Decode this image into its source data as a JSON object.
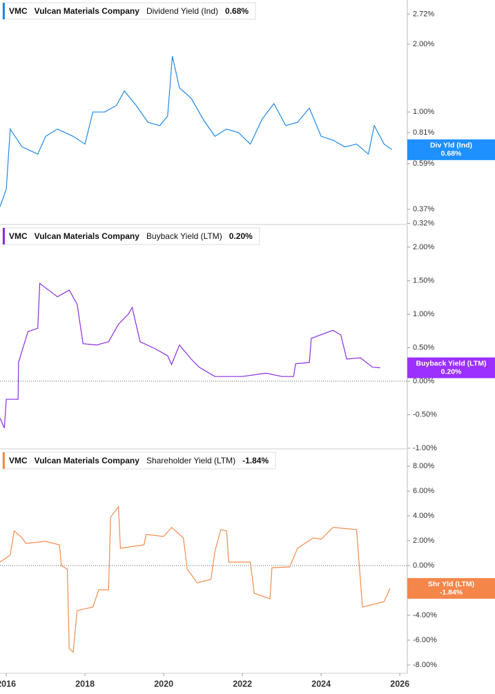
{
  "chart_data": [
    {
      "type": "line",
      "ticker": "VMC",
      "company": "Vulcan Materials Company",
      "latest_label": "0.68%",
      "tag_label": "Div Yld (Ind)",
      "log_scale": true,
      "zero_line": false,
      "tag_color": "#1e90ff",
      "x": [
        2015.84,
        2016.0,
        2016.1,
        2016.4,
        2016.8,
        2017.0,
        2017.3,
        2017.7,
        2018.0,
        2018.2,
        2018.5,
        2018.8,
        2019.0,
        2019.3,
        2019.6,
        2019.9,
        2020.1,
        2020.22,
        2020.4,
        2020.7,
        2021.0,
        2021.3,
        2021.6,
        2021.9,
        2022.2,
        2022.5,
        2022.8,
        2023.1,
        2023.4,
        2023.7,
        2024.0,
        2024.3,
        2024.6,
        2024.9,
        2025.2,
        2025.35,
        2025.6,
        2025.8
      ],
      "series": [
        {
          "name": "Dividend Yield (Ind)",
          "color": "#1e88e5",
          "values": [
            0.38,
            0.455,
            0.84,
            0.7,
            0.65,
            0.78,
            0.84,
            0.78,
            0.72,
            1.0,
            1.0,
            1.07,
            1.24,
            1.07,
            0.9,
            0.87,
            0.96,
            1.77,
            1.28,
            1.15,
            0.93,
            0.78,
            0.84,
            0.81,
            0.72,
            0.93,
            1.09,
            0.87,
            0.9,
            1.04,
            0.78,
            0.75,
            0.7,
            0.72,
            0.65,
            0.87,
            0.72,
            0.68
          ]
        }
      ],
      "xlim": [
        2015.84,
        2026.19
      ],
      "ylim": [
        0.317,
        3.14
      ],
      "yticks": [
        {
          "value": 0.32,
          "label": "0.32%"
        },
        {
          "value": 0.37,
          "label": "0.37%"
        },
        {
          "value": 0.59,
          "label": "0.59%"
        },
        {
          "value": 0.81,
          "label": "0.81%"
        },
        {
          "value": 1.0,
          "label": "1.00%"
        },
        {
          "value": 2.0,
          "label": "2.00%"
        },
        {
          "value": 2.72,
          "label": "2.72%"
        }
      ]
    },
    {
      "type": "line",
      "ticker": "VMC",
      "company": "Vulcan Materials Company",
      "latest_label": "0.20%",
      "tag_label": "Buyback Yield (LTM)",
      "log_scale": false,
      "zero_line": true,
      "tag_color": "#9b30ff",
      "x": [
        2015.84,
        2015.95,
        2016.0,
        2016.3,
        2016.31,
        2016.55,
        2016.8,
        2016.85,
        2017.3,
        2017.6,
        2017.8,
        2017.95,
        2018.3,
        2018.6,
        2018.85,
        2019.1,
        2019.2,
        2019.4,
        2019.8,
        2020.1,
        2020.2,
        2020.4,
        2020.7,
        2020.9,
        2021.3,
        2022.0,
        2022.6,
        2023.0,
        2023.3,
        2023.35,
        2023.7,
        2023.75,
        2024.3,
        2024.5,
        2024.65,
        2025.0,
        2025.3,
        2025.5
      ],
      "series": [
        {
          "name": "Buyback Yield (LTM)",
          "color": "#8a2be2",
          "values": [
            -0.55,
            -0.7,
            -0.27,
            -0.27,
            0.28,
            0.74,
            0.79,
            1.46,
            1.26,
            1.36,
            1.15,
            0.56,
            0.54,
            0.59,
            0.85,
            1.0,
            1.1,
            0.59,
            0.48,
            0.38,
            0.25,
            0.54,
            0.33,
            0.21,
            0.07,
            0.07,
            0.12,
            0.07,
            0.07,
            0.26,
            0.28,
            0.64,
            0.76,
            0.69,
            0.33,
            0.35,
            0.21,
            0.2
          ]
        }
      ],
      "xlim": [
        2015.84,
        2026.19
      ],
      "ylim": [
        -1.01,
        2.33
      ],
      "yticks": [
        {
          "value": -1.0,
          "label": "-1.00%"
        },
        {
          "value": -0.5,
          "label": "-0.50%"
        },
        {
          "value": 0.0,
          "label": "0.00%"
        },
        {
          "value": 0.5,
          "label": "0.50%"
        },
        {
          "value": 1.0,
          "label": "1.00%"
        },
        {
          "value": 1.5,
          "label": "1.50%"
        },
        {
          "value": 2.0,
          "label": "2.00%"
        }
      ]
    },
    {
      "type": "line",
      "ticker": "VMC",
      "company": "Vulcan Materials Company",
      "latest_label": "-1.84%",
      "tag_label": "Shr Yld (LTM)",
      "log_scale": false,
      "zero_line": true,
      "tag_color": "#f5864a",
      "x": [
        2015.84,
        2016.1,
        2016.2,
        2016.4,
        2016.5,
        2017.0,
        2017.35,
        2017.4,
        2017.55,
        2017.6,
        2017.7,
        2017.8,
        2018.2,
        2018.35,
        2018.6,
        2018.65,
        2018.85,
        2018.9,
        2019.5,
        2019.55,
        2020.0,
        2020.2,
        2020.5,
        2020.6,
        2020.85,
        2021.2,
        2021.3,
        2021.45,
        2021.6,
        2021.65,
        2022.2,
        2022.3,
        2022.7,
        2022.75,
        2023.2,
        2023.4,
        2023.8,
        2024.0,
        2024.3,
        2024.9,
        2025.05,
        2025.6,
        2025.75
      ],
      "series": [
        {
          "name": "Shareholder Yield (LTM)",
          "color": "#f28b4b",
          "values": [
            0.28,
            0.84,
            2.79,
            2.23,
            1.78,
            1.95,
            1.67,
            0.0,
            -0.28,
            -6.69,
            -6.97,
            -3.62,
            -3.34,
            -1.95,
            -1.95,
            3.9,
            4.74,
            1.39,
            1.67,
            2.51,
            2.34,
            3.07,
            2.23,
            -0.28,
            -1.39,
            -1.11,
            1.11,
            2.9,
            2.79,
            0.28,
            0.28,
            -2.23,
            -2.68,
            -0.17,
            -0.11,
            1.39,
            2.23,
            2.12,
            3.07,
            2.9,
            -3.34,
            -2.9,
            -1.84
          ]
        }
      ],
      "xlim": [
        2015.84,
        2026.19
      ],
      "ylim": [
        -8.67,
        9.34
      ],
      "yticks": [
        {
          "value": -8.0,
          "label": "-8.00%"
        },
        {
          "value": -6.0,
          "label": "-6.00%"
        },
        {
          "value": -4.0,
          "label": "-4.00%"
        },
        {
          "value": -2.0,
          "label": "-2.00%"
        },
        {
          "value": 0.0,
          "label": "0.00%"
        },
        {
          "value": 2.0,
          "label": "2.00%"
        },
        {
          "value": 4.0,
          "label": "4.00%"
        },
        {
          "value": 6.0,
          "label": "6.00%"
        },
        {
          "value": 8.0,
          "label": "8.00%"
        }
      ],
      "xticks": [
        2016,
        2018,
        2020,
        2022,
        2024,
        2026
      ]
    }
  ]
}
